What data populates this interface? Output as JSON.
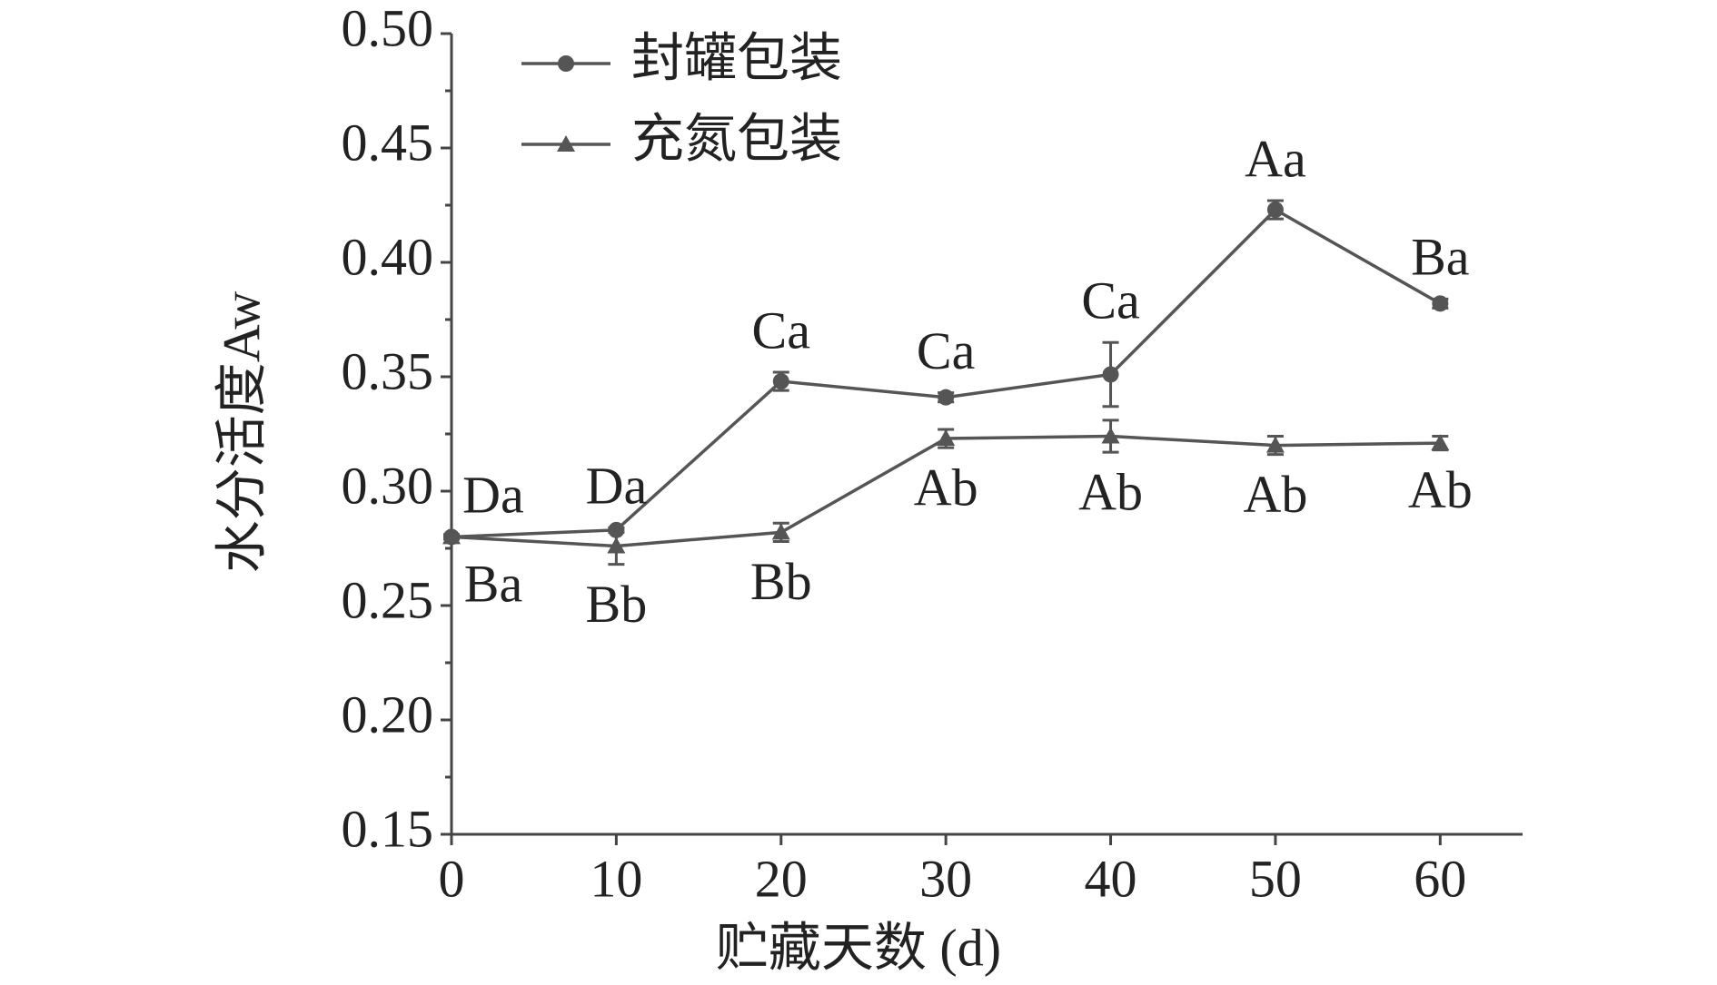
{
  "chart_data": {
    "type": "line",
    "xlabel": "贮藏天数 (d)",
    "ylabel": "水分活度Aw",
    "x": [
      0,
      10,
      20,
      30,
      40,
      50,
      60
    ],
    "series": [
      {
        "name": "封罐包装",
        "color": "#555555",
        "marker": "circle",
        "values": [
          0.28,
          0.283,
          0.348,
          0.341,
          0.351,
          0.423,
          0.382
        ],
        "errors": [
          0.001,
          0.001,
          0.004,
          0.002,
          0.014,
          0.004,
          0.002
        ],
        "labels": [
          "Da",
          "Da",
          "Ca",
          "Ca",
          "Ca",
          "Aa",
          "Ba"
        ],
        "label_side": "above"
      },
      {
        "name": "充氮包装",
        "color": "#555555",
        "marker": "triangle",
        "values": [
          0.28,
          0.276,
          0.282,
          0.323,
          0.324,
          0.32,
          0.321
        ],
        "errors": [
          0.001,
          0.008,
          0.004,
          0.004,
          0.007,
          0.004,
          0.003
        ],
        "labels": [
          "Ba",
          "Bb",
          "Bb",
          "Ab",
          "Ab",
          "Ab",
          "Ab"
        ],
        "label_side": "below"
      }
    ],
    "xlim": [
      0,
      65
    ],
    "xticks": [
      0,
      10,
      20,
      30,
      40,
      50,
      60
    ],
    "ylim": [
      0.15,
      0.5
    ],
    "yticks": [
      {
        "value": 0.15,
        "label": "0.15"
      },
      {
        "value": 0.2,
        "label": "0.20"
      },
      {
        "value": 0.25,
        "label": "0.25"
      },
      {
        "value": 0.3,
        "label": "0.30"
      },
      {
        "value": 0.35,
        "label": "0.35"
      },
      {
        "value": 0.4,
        "label": "0.40"
      },
      {
        "value": 0.45,
        "label": "0.45"
      },
      {
        "value": 0.5,
        "label": "0.50"
      }
    ],
    "legend": "upper left",
    "grid": false
  }
}
